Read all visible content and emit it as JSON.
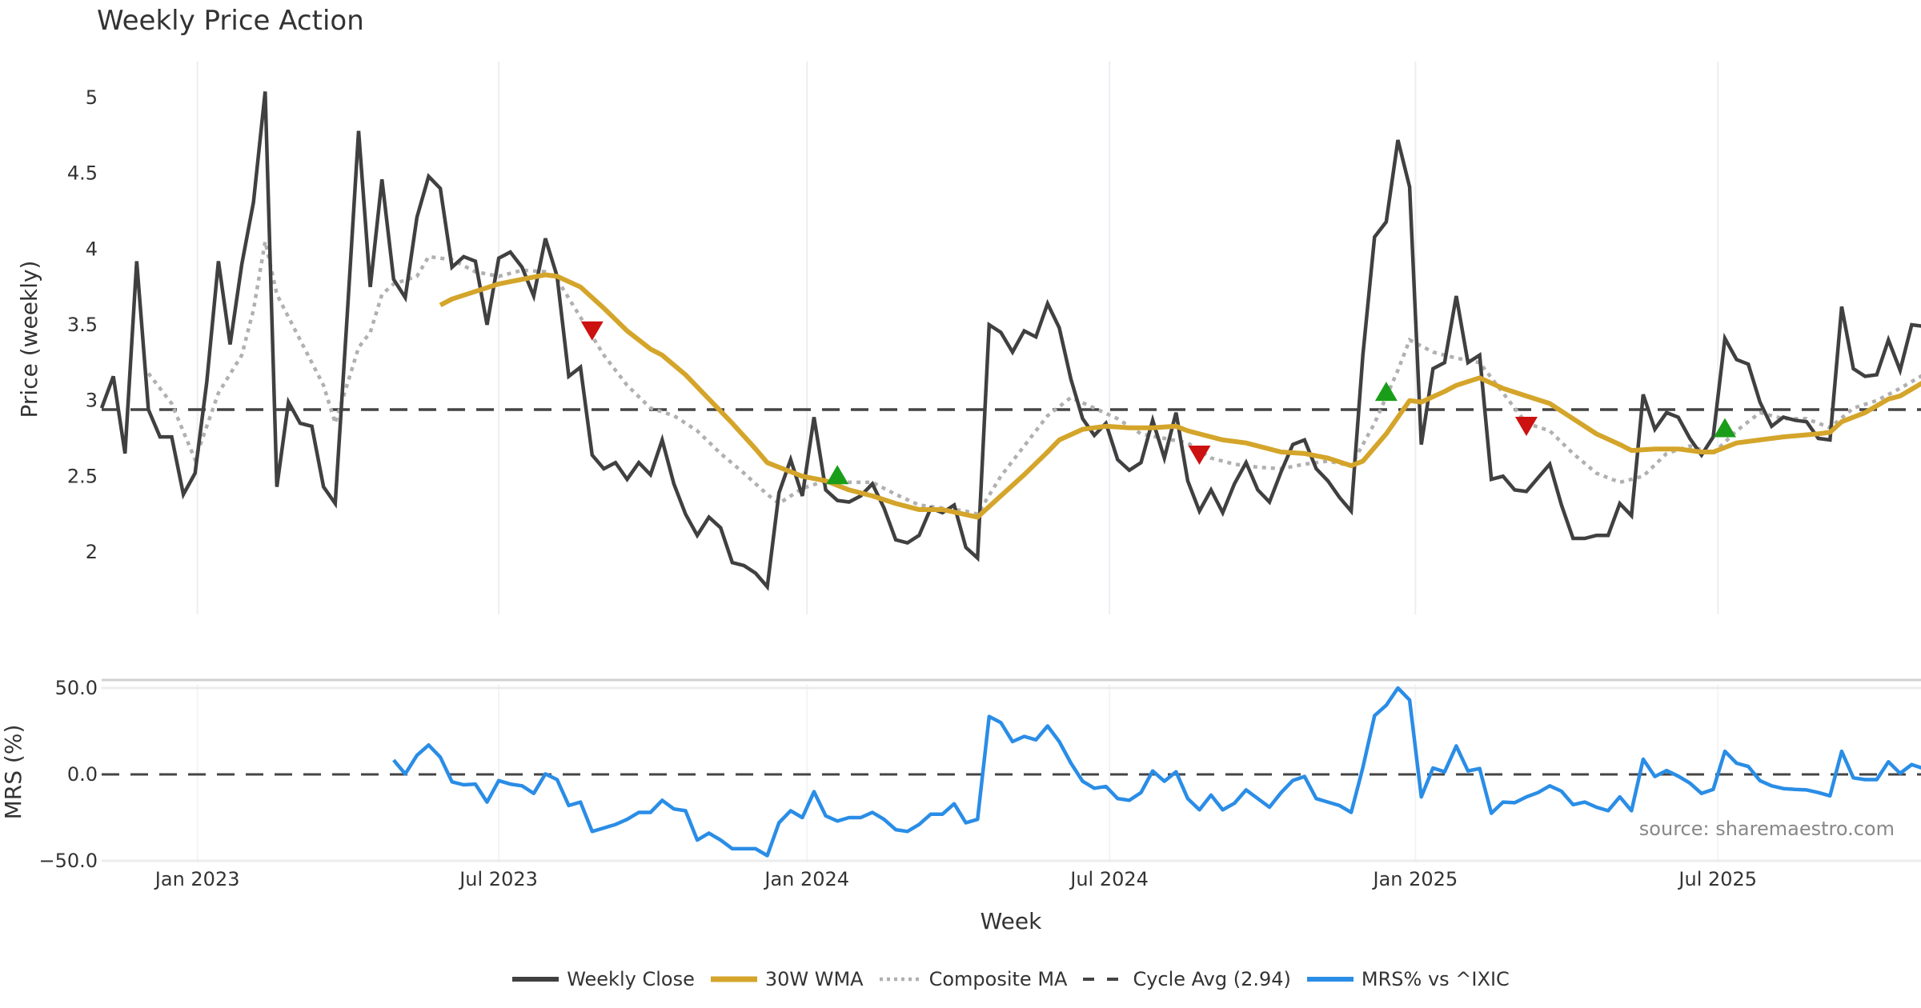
{
  "title": "Weekly Price Action",
  "xlabel": "Week",
  "source": "source: sharemaestro.com",
  "legend": [
    {
      "label": "Weekly Close",
      "color": "#404040",
      "style": "solid"
    },
    {
      "label": "30W WMA",
      "color": "#d4a52a",
      "style": "solid"
    },
    {
      "label": "Composite MA",
      "color": "#b0b0b0",
      "style": "dotted"
    },
    {
      "label": "Cycle Avg (2.94)",
      "color": "#444444",
      "style": "dashed"
    },
    {
      "label": "MRS% vs ^IXIC",
      "color": "#2a8de6",
      "style": "solid"
    }
  ],
  "x_ticks": [
    {
      "label": "Jan 2023",
      "week": 8.2
    },
    {
      "label": "Jul 2023",
      "week": 34
    },
    {
      "label": "Jan 2024",
      "week": 60.4
    },
    {
      "label": "Jul 2024",
      "week": 86.3
    },
    {
      "label": "Jan 2025",
      "week": 112.5
    },
    {
      "label": "Jul 2025",
      "week": 138.4
    }
  ],
  "chart_data": [
    {
      "type": "line",
      "panel": "price",
      "ylabel": "Price (weekly)",
      "ylim": [
        1.55,
        5.25
      ],
      "xlim": [
        0,
        156
      ],
      "y_ticks": [
        {
          "value": 5,
          "label": "5"
        },
        {
          "value": 4.5,
          "label": "4.5"
        },
        {
          "value": 4,
          "label": "4"
        },
        {
          "value": 3.5,
          "label": "3.5"
        },
        {
          "value": 3,
          "label": "3"
        },
        {
          "value": 2.5,
          "label": "2.5"
        },
        {
          "value": 2,
          "label": "2"
        }
      ],
      "cycle_avg": 2.94,
      "series": [
        {
          "name": "Weekly Close",
          "color": "#404040",
          "start": 0,
          "values": [
            2.95,
            3.16,
            2.65,
            3.92,
            2.94,
            2.76,
            2.76,
            2.38,
            2.52,
            3.12,
            3.92,
            3.37,
            3.9,
            4.31,
            5.04,
            2.43,
            2.99,
            2.85,
            2.83,
            2.43,
            2.32,
            3.53,
            4.78,
            3.75,
            4.46,
            3.8,
            3.68,
            4.21,
            4.48,
            4.4,
            3.88,
            3.95,
            3.92,
            3.5,
            3.94,
            3.98,
            3.88,
            3.69,
            4.07,
            3.82,
            3.16,
            3.22,
            2.64,
            2.55,
            2.59,
            2.48,
            2.59,
            2.51,
            2.74,
            2.45,
            2.25,
            2.11,
            2.23,
            2.16,
            1.93,
            1.91,
            1.86,
            1.77,
            2.39,
            2.61,
            2.37,
            2.89,
            2.41,
            2.34,
            2.33,
            2.37,
            2.45,
            2.29,
            2.08,
            2.06,
            2.11,
            2.29,
            2.26,
            2.31,
            2.03,
            1.96,
            3.5,
            3.45,
            3.32,
            3.46,
            3.42,
            3.64,
            3.48,
            3.14,
            2.88,
            2.77,
            2.85,
            2.61,
            2.54,
            2.59,
            2.87,
            2.62,
            2.92,
            2.47,
            2.27,
            2.41,
            2.26,
            2.45,
            2.59,
            2.41,
            2.33,
            2.53,
            2.71,
            2.74,
            2.55,
            2.47,
            2.36,
            2.27,
            3.3,
            4.08,
            4.18,
            4.72,
            4.41,
            2.71,
            3.21,
            3.25,
            3.69,
            3.25,
            3.3,
            2.48,
            2.5,
            2.41,
            2.4,
            2.49,
            2.58,
            2.31,
            2.09,
            2.09,
            2.11,
            2.11,
            2.32,
            2.24,
            3.04,
            2.81,
            2.92,
            2.89,
            2.75,
            2.64,
            2.76,
            3.41,
            3.27,
            3.24,
            2.99,
            2.83,
            2.89,
            2.87,
            2.86,
            2.75,
            2.74,
            3.62,
            3.21,
            3.16,
            3.17,
            3.4,
            3.2,
            3.5,
            3.49
          ]
        },
        {
          "name": "30W WMA",
          "color": "#d4a52a",
          "points": [
            [
              29,
              3.63
            ],
            [
              30,
              3.67
            ],
            [
              32,
              3.72
            ],
            [
              34,
              3.77
            ],
            [
              36,
              3.8
            ],
            [
              38,
              3.83
            ],
            [
              39,
              3.82
            ],
            [
              41,
              3.75
            ],
            [
              43,
              3.61
            ],
            [
              45,
              3.46
            ],
            [
              47,
              3.34
            ],
            [
              48,
              3.3
            ],
            [
              50,
              3.17
            ],
            [
              52,
              3.01
            ],
            [
              54,
              2.85
            ],
            [
              56,
              2.68
            ],
            [
              57,
              2.59
            ],
            [
              58,
              2.56
            ],
            [
              60,
              2.5
            ],
            [
              62,
              2.47
            ],
            [
              64,
              2.41
            ],
            [
              66,
              2.37
            ],
            [
              68,
              2.32
            ],
            [
              70,
              2.28
            ],
            [
              72,
              2.28
            ],
            [
              75,
              2.23
            ],
            [
              77,
              2.37
            ],
            [
              79,
              2.51
            ],
            [
              81,
              2.66
            ],
            [
              82,
              2.74
            ],
            [
              84,
              2.81
            ],
            [
              86,
              2.83
            ],
            [
              88,
              2.82
            ],
            [
              90,
              2.82
            ],
            [
              92,
              2.83
            ],
            [
              93,
              2.8
            ],
            [
              95,
              2.76
            ],
            [
              96,
              2.74
            ],
            [
              98,
              2.72
            ],
            [
              101,
              2.66
            ],
            [
              103,
              2.65
            ],
            [
              105,
              2.62
            ],
            [
              107,
              2.57
            ],
            [
              108,
              2.6
            ],
            [
              110,
              2.78
            ],
            [
              112,
              3.0
            ],
            [
              113,
              2.99
            ],
            [
              115,
              3.06
            ],
            [
              116,
              3.1
            ],
            [
              118,
              3.15
            ],
            [
              120,
              3.08
            ],
            [
              122,
              3.03
            ],
            [
              124,
              2.98
            ],
            [
              126,
              2.88
            ],
            [
              128,
              2.78
            ],
            [
              130,
              2.71
            ],
            [
              131,
              2.67
            ],
            [
              133,
              2.68
            ],
            [
              135,
              2.68
            ],
            [
              137,
              2.66
            ],
            [
              138,
              2.66
            ],
            [
              140,
              2.72
            ],
            [
              142,
              2.74
            ],
            [
              144,
              2.76
            ],
            [
              147,
              2.78
            ],
            [
              148,
              2.79
            ],
            [
              149,
              2.86
            ],
            [
              151,
              2.92
            ],
            [
              153,
              3.01
            ],
            [
              154,
              3.03
            ],
            [
              156,
              3.12
            ]
          ]
        },
        {
          "name": "Composite MA",
          "color": "#b0b0b0",
          "points": [
            [
              4,
              3.18
            ],
            [
              6,
              2.98
            ],
            [
              8,
              2.61
            ],
            [
              10,
              3.05
            ],
            [
              12,
              3.3
            ],
            [
              13,
              3.6
            ],
            [
              14,
              4.05
            ],
            [
              15,
              3.7
            ],
            [
              17,
              3.4
            ],
            [
              19,
              3.1
            ],
            [
              20,
              2.85
            ],
            [
              22,
              3.35
            ],
            [
              23,
              3.45
            ],
            [
              24,
              3.7
            ],
            [
              25,
              3.77
            ],
            [
              27,
              3.82
            ],
            [
              28,
              3.95
            ],
            [
              30,
              3.93
            ],
            [
              32,
              3.85
            ],
            [
              34,
              3.82
            ],
            [
              36,
              3.86
            ],
            [
              38,
              3.85
            ],
            [
              39,
              3.8
            ],
            [
              41,
              3.55
            ],
            [
              43,
              3.3
            ],
            [
              45,
              3.1
            ],
            [
              47,
              2.95
            ],
            [
              49,
              2.9
            ],
            [
              51,
              2.8
            ],
            [
              53,
              2.65
            ],
            [
              55,
              2.52
            ],
            [
              57,
              2.38
            ],
            [
              58,
              2.32
            ],
            [
              60,
              2.42
            ],
            [
              62,
              2.47
            ],
            [
              64,
              2.46
            ],
            [
              66,
              2.46
            ],
            [
              68,
              2.38
            ],
            [
              70,
              2.31
            ],
            [
              72,
              2.29
            ],
            [
              74,
              2.27
            ],
            [
              75,
              2.25
            ],
            [
              77,
              2.5
            ],
            [
              79,
              2.7
            ],
            [
              81,
              2.9
            ],
            [
              83,
              3.02
            ],
            [
              85,
              2.95
            ],
            [
              87,
              2.88
            ],
            [
              89,
              2.78
            ],
            [
              91,
              2.75
            ],
            [
              93,
              2.72
            ],
            [
              95,
              2.62
            ],
            [
              97,
              2.58
            ],
            [
              99,
              2.56
            ],
            [
              101,
              2.55
            ],
            [
              103,
              2.58
            ],
            [
              105,
              2.6
            ],
            [
              107,
              2.57
            ],
            [
              109,
              2.85
            ],
            [
              111,
              3.2
            ],
            [
              112,
              3.4
            ],
            [
              114,
              3.32
            ],
            [
              116,
              3.28
            ],
            [
              118,
              3.25
            ],
            [
              120,
              3.05
            ],
            [
              122,
              2.85
            ],
            [
              124,
              2.8
            ],
            [
              126,
              2.65
            ],
            [
              128,
              2.52
            ],
            [
              130,
              2.46
            ],
            [
              132,
              2.5
            ],
            [
              134,
              2.65
            ],
            [
              136,
              2.7
            ],
            [
              138,
              2.65
            ],
            [
              140,
              2.8
            ],
            [
              142,
              2.92
            ],
            [
              144,
              2.88
            ],
            [
              146,
              2.88
            ],
            [
              148,
              2.82
            ],
            [
              150,
              2.95
            ],
            [
              152,
              3.0
            ],
            [
              154,
              3.08
            ],
            [
              156,
              3.17
            ]
          ]
        }
      ],
      "signals": [
        {
          "type": "sell",
          "week": 42,
          "value": 3.48,
          "color": "#cc1111"
        },
        {
          "type": "buy",
          "week": 63,
          "value": 2.49,
          "color": "#1a9e1a"
        },
        {
          "type": "sell",
          "week": 94,
          "value": 2.66,
          "color": "#cc1111"
        },
        {
          "type": "buy",
          "week": 110,
          "value": 3.04,
          "color": "#1a9e1a"
        },
        {
          "type": "sell",
          "week": 122,
          "value": 2.85,
          "color": "#cc1111"
        },
        {
          "type": "buy",
          "week": 139,
          "value": 2.8,
          "color": "#1a9e1a"
        }
      ]
    },
    {
      "type": "line",
      "panel": "mrs",
      "ylabel": "MRS (%)",
      "ylim": [
        -50,
        50
      ],
      "xlim": [
        0,
        156
      ],
      "y_ticks": [
        {
          "value": 50,
          "label": "50.0"
        },
        {
          "value": 0,
          "label": "0.0"
        },
        {
          "value": -50,
          "label": "−50.0"
        }
      ],
      "series": [
        {
          "name": "MRS% vs ^IXIC",
          "color": "#2a8de6",
          "start": 25,
          "values": [
            8.3,
            0.3,
            11,
            17,
            10,
            -4.3,
            -6,
            -5.6,
            -16,
            -3.6,
            -5.6,
            -6.6,
            -11,
            0.3,
            -3,
            -18,
            -16,
            -33,
            -31,
            -29,
            -26,
            -22,
            -22,
            -15,
            -20,
            -21,
            -38,
            -34,
            -38,
            -43,
            -43,
            -43,
            -47,
            -28,
            -21,
            -25,
            -10,
            -24,
            -27,
            -25,
            -25,
            -22,
            -26,
            -32,
            -33,
            -29,
            -23,
            -23,
            -17,
            -28,
            -26,
            33.5,
            30,
            19,
            22,
            20,
            28,
            19,
            6.5,
            -4,
            -8,
            -7,
            -14,
            -15,
            -10.5,
            2,
            -4,
            1.5,
            -14,
            -20.5,
            -12,
            -20.5,
            -16.7,
            -9,
            -14,
            -19,
            -10.5,
            -3.5,
            -1.2,
            -14,
            -16,
            -18,
            -22,
            4,
            34,
            40,
            50,
            43,
            -13,
            3.7,
            1.5,
            16.5,
            2,
            3.4,
            -22.5,
            -16,
            -16.4,
            -13,
            -10.5,
            -6.6,
            -9.7,
            -17.5,
            -16,
            -19,
            -21,
            -13,
            -21,
            8.8,
            -1.2,
            2.2,
            -1,
            -5,
            -11,
            -8.7,
            13.4,
            6.5,
            4.6,
            -3.6,
            -6.6,
            -8.2,
            -8.7,
            -9,
            -10.5,
            -12.4,
            13.4,
            -2,
            -3,
            -3,
            7.3,
            0.6,
            5.7,
            3.4
          ]
        }
      ]
    }
  ]
}
